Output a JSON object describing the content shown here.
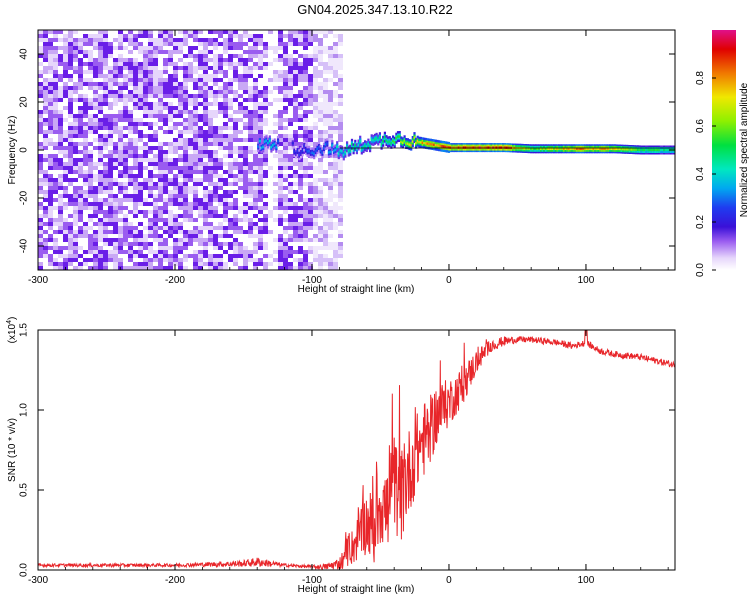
{
  "title": "GN04.2025.347.13.10.R22",
  "colors": {
    "snr_line": "#e8262a",
    "spec_purple": "#6a1ee8",
    "spec_light": "#c9a8f5",
    "colormap": [
      "#ffffff",
      "#e6d6fb",
      "#b48cf0",
      "#7a33e6",
      "#3a10c8",
      "#1f3cf0",
      "#00b8f0",
      "#00e8b0",
      "#00e040",
      "#b8f000",
      "#f0e000",
      "#f07000",
      "#e00000",
      "#e0108a"
    ]
  },
  "chart_data": [
    {
      "type": "heatmap",
      "name": "spectrogram",
      "xlabel": "Height of straight line (km)",
      "ylabel": "Frequency (Hz)",
      "xlim": [
        -300,
        165
      ],
      "ylim": [
        -50,
        50
      ],
      "xticks": [
        -300,
        -200,
        -100,
        0,
        100
      ],
      "xtick_labels": [
        "-300",
        "-200",
        "-100",
        "0",
        "100"
      ],
      "yticks": [
        -40,
        -20,
        0,
        20,
        40
      ],
      "ytick_labels": [
        "-40",
        "-20",
        "0",
        "20",
        "40"
      ],
      "noise_region_x": [
        -300,
        -80
      ],
      "clear_band_x": [
        -135,
        -125
      ],
      "signal_track": {
        "x": [
          -140,
          -130,
          -120,
          -110,
          -100,
          -90,
          -80,
          -70,
          -60,
          -50,
          -40,
          -30,
          -20,
          -10,
          0,
          20,
          40,
          60,
          80,
          100,
          120,
          140,
          165
        ],
        "freq": [
          2,
          3,
          2,
          0,
          0,
          1,
          -1,
          1,
          3,
          4,
          5,
          4,
          3,
          2,
          1,
          1,
          1,
          0.5,
          0.5,
          0.5,
          0.5,
          0,
          0
        ],
        "amplitude": [
          0.35,
          0.4,
          0.2,
          0.25,
          0.3,
          0.3,
          0.45,
          0.5,
          0.45,
          0.5,
          0.55,
          0.75,
          0.8,
          0.85,
          0.9,
          0.95,
          0.9,
          0.6,
          0.75,
          0.85,
          0.75,
          0.55,
          0.5
        ]
      },
      "colorbar": {
        "label": "Normalized spectral amplitude",
        "range": [
          0,
          1
        ],
        "ticks": [
          0.0,
          0.2,
          0.4,
          0.6,
          0.8
        ],
        "tick_labels": [
          "0.0",
          "0.2",
          "0.4",
          "0.6",
          "0.8"
        ]
      }
    },
    {
      "type": "line",
      "name": "snr",
      "xlabel": "Height of straight line (km)",
      "ylabel": "SNR (10 * v/v)",
      "y_exponent": "(x10",
      "y_exponent_power": "4",
      "y_exponent_close": ")",
      "xlim": [
        -300,
        165
      ],
      "ylim": [
        0,
        1.5
      ],
      "xticks": [
        -300,
        -200,
        -100,
        0,
        100
      ],
      "xtick_labels": [
        "-300",
        "-200",
        "-100",
        "0",
        "100"
      ],
      "yticks": [
        0,
        0.5,
        1.0,
        1.5
      ],
      "ytick_labels": [
        "0.0",
        "0.5",
        "1.0",
        "1.5"
      ],
      "series": [
        {
          "x": [
            -300,
            -250,
            -200,
            -150,
            -140,
            -120,
            -100,
            -90,
            -80,
            -70,
            -60,
            -55,
            -50,
            -45,
            -40,
            -35,
            -30,
            -25,
            -20,
            -15,
            -10,
            -5,
            0,
            10,
            20,
            30,
            40,
            50,
            60,
            70,
            80,
            90,
            100,
            110,
            120,
            140,
            165
          ],
          "values": [
            0.03,
            0.03,
            0.03,
            0.04,
            0.05,
            0.03,
            0.02,
            0.02,
            0.04,
            0.15,
            0.3,
            0.25,
            0.45,
            0.35,
            0.55,
            0.45,
            0.6,
            0.7,
            0.8,
            0.85,
            0.95,
            1.0,
            1.05,
            1.15,
            1.3,
            1.4,
            1.43,
            1.44,
            1.44,
            1.43,
            1.42,
            1.4,
            1.42,
            1.37,
            1.35,
            1.33,
            1.28
          ],
          "noise_amplitude": [
            0.01,
            0.01,
            0.01,
            0.02,
            0.03,
            0.01,
            0.01,
            0.02,
            0.04,
            0.12,
            0.2,
            0.25,
            0.3,
            0.3,
            0.3,
            0.3,
            0.28,
            0.25,
            0.25,
            0.22,
            0.2,
            0.18,
            0.15,
            0.12,
            0.08,
            0.04,
            0.03,
            0.02,
            0.02,
            0.02,
            0.02,
            0.02,
            0.02,
            0.02,
            0.02,
            0.02,
            0.02
          ]
        }
      ]
    }
  ]
}
